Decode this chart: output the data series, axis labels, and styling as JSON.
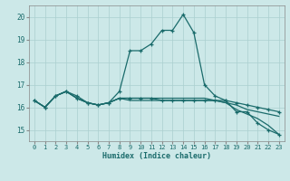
{
  "xlabel": "Humidex (Indice chaleur)",
  "xlim": [
    -0.5,
    23.5
  ],
  "ylim": [
    14.5,
    20.5
  ],
  "yticks": [
    15,
    16,
    17,
    18,
    19,
    20
  ],
  "xticks": [
    0,
    1,
    2,
    3,
    4,
    5,
    6,
    7,
    8,
    9,
    10,
    11,
    12,
    13,
    14,
    15,
    16,
    17,
    18,
    19,
    20,
    21,
    22,
    23
  ],
  "bg_color": "#cce8e8",
  "grid_color": "#aacfcf",
  "line_color": "#1a6b6b",
  "line1_x": [
    0,
    1,
    2,
    3,
    4,
    5,
    6,
    7,
    8,
    9,
    10,
    11,
    12,
    13,
    14,
    15,
    16,
    17,
    18,
    19,
    20,
    21,
    22,
    23
  ],
  "line1_y": [
    16.3,
    16.0,
    16.5,
    16.7,
    16.5,
    16.2,
    16.1,
    16.2,
    16.7,
    18.5,
    18.5,
    18.8,
    19.4,
    19.4,
    20.1,
    19.3,
    17.0,
    16.5,
    16.3,
    15.8,
    15.8,
    15.3,
    15.0,
    14.8
  ],
  "line2_x": [
    0,
    1,
    2,
    3,
    4,
    5,
    6,
    7,
    8,
    9,
    10,
    11,
    12,
    13,
    14,
    15,
    16,
    17,
    18,
    19,
    20,
    21,
    22,
    23
  ],
  "line2_y": [
    16.3,
    16.0,
    16.5,
    16.7,
    16.4,
    16.2,
    16.1,
    16.2,
    16.4,
    16.4,
    16.4,
    16.4,
    16.3,
    16.3,
    16.3,
    16.3,
    16.3,
    16.3,
    16.3,
    16.2,
    16.1,
    16.0,
    15.9,
    15.8
  ],
  "line3_x": [
    0,
    1,
    2,
    3,
    4,
    5,
    6,
    7,
    8,
    9,
    10,
    11,
    12,
    13,
    14,
    15,
    16,
    17,
    18,
    19,
    20,
    21,
    22,
    23
  ],
  "line3_y": [
    16.3,
    16.0,
    16.5,
    16.7,
    16.4,
    16.2,
    16.1,
    16.2,
    16.4,
    16.3,
    16.3,
    16.3,
    16.3,
    16.3,
    16.3,
    16.3,
    16.3,
    16.3,
    16.2,
    15.9,
    15.7,
    15.5,
    15.2,
    14.8
  ],
  "line4_x": [
    0,
    1,
    2,
    3,
    4,
    5,
    6,
    7,
    8,
    9,
    10,
    11,
    12,
    13,
    14,
    15,
    16,
    17,
    18,
    19,
    20,
    21,
    22,
    23
  ],
  "line4_y": [
    16.3,
    16.0,
    16.5,
    16.7,
    16.4,
    16.2,
    16.1,
    16.2,
    16.4,
    16.4,
    16.4,
    16.4,
    16.4,
    16.4,
    16.4,
    16.4,
    16.4,
    16.3,
    16.2,
    16.1,
    15.9,
    15.8,
    15.7,
    15.6
  ]
}
